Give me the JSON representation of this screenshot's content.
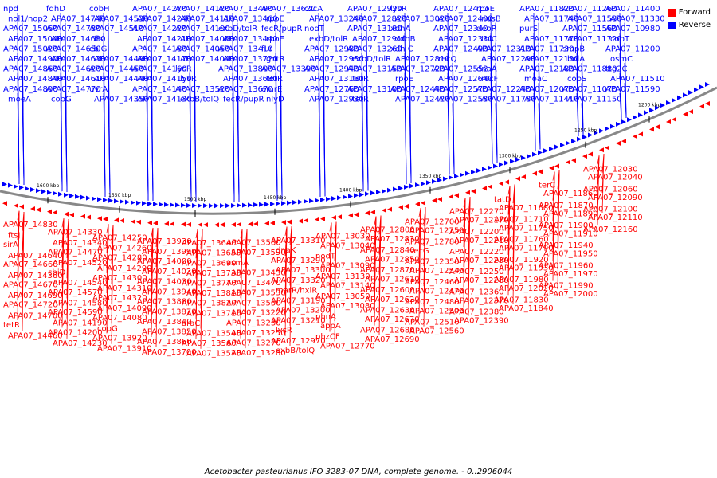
{
  "caption": "Acetobacter pasteurianus IFO 3283-07 DNA, complete genome. - 0..2906044",
  "legend": [
    {
      "label": "Forward",
      "color": "#ff0000"
    },
    {
      "label": "Reverse",
      "color": "#0000ff"
    }
  ],
  "colors": {
    "forward": "#ff0000",
    "reverse": "#0000ff",
    "backbone": "#888888"
  },
  "scale_ticks": [
    "1600 kbp",
    "1550 kbp",
    "1500 kbp",
    "1450 kbp",
    "1400 kbp",
    "1350 kbp",
    "1300 kbp",
    "1250 kbp",
    "1200 kbp"
  ],
  "reverse_labels": [
    "npd",
    "nol1/nop2",
    "APA07_15060",
    "APA07_15040",
    "APA07_15020",
    "APA07_14900",
    "APA07_14860",
    "APA07_14840",
    "APA07_14800",
    "moeA",
    "fdhD",
    "APA07_14740",
    "APA07_14730",
    "APA07_14680",
    "APA07_14650",
    "APA07_14630",
    "APA07_14620",
    "APA07_14610",
    "APA07_14770",
    "cobG",
    "cobH",
    "APA07_14530",
    "APA07_14510",
    "fis",
    "cbiG",
    "APA07_14490",
    "APA07_14450",
    "APA07_14440",
    "uvrA",
    "APA07_14350",
    "APA07_14270",
    "APA07_14240",
    "APA07_14220",
    "APA07_14210",
    "APA07_14180",
    "APA07_14170",
    "APA07_14160",
    "APA07_14150",
    "APA07_14140",
    "APA07_14130",
    "APA07_14120",
    "APA07_14110",
    "APA07_14100",
    "APA07_14060",
    "APA07_14050",
    "APA07_14040",
    "lysR",
    "lysR",
    "APA07_13520",
    "exbB/tolQ",
    "APA07_13490",
    "APA07_13460",
    "exbD/tolR",
    "APA07_13440",
    "APA07_13410",
    "APA07_13720",
    "APA07_13800",
    "APA07_13680",
    "APA07_13670",
    "fecR/pupR",
    "APA07_13620",
    "rpoE",
    "fecR/pupR",
    "rpoE",
    "fur",
    "gntR",
    "APA07_13390",
    "tetR",
    "emrE",
    "nlyD",
    "czcA",
    "APA07_13240",
    "nodT",
    "exbD/tolR",
    "APA07_12980",
    "APA07_12950",
    "APA07_12940",
    "APA07_13160",
    "APA07_12760",
    "APA07_12930",
    "APA07_12920",
    "APA07_12820",
    "APA07_13180",
    "APA07_12910",
    "APA07_13260",
    "exbD/tolR",
    "APA07_13150",
    "tetR",
    "APA07_13100",
    "tetR",
    "lysR",
    "APA07_13020",
    "xdhA",
    "xdhB",
    "xdh C",
    "APA07_12810",
    "APA07_12720",
    "rpoE",
    "APA07_12440",
    "APA07_12420",
    "APA07_12410",
    "APA07_12400",
    "APA07_12340",
    "APA07_12330",
    "APA07_12490",
    "recQ",
    "APA07_12552",
    "APA07_12640",
    "APA07_12570",
    "APA07_12530",
    "rpoE",
    "nusB",
    "deoR",
    "tolC",
    "APA07_12310",
    "APA07_12290",
    "dnaA",
    "recF",
    "APA07_12240",
    "APA07_11780",
    "APA07_11820",
    "APA07_11740",
    "purS",
    "APA07_11770",
    "APA07_11730",
    "APA07_12130",
    "APA07_12180",
    "moaC",
    "APA07_12070",
    "APA07_11410",
    "APA07_11260",
    "APA07_11580",
    "APA07_11560",
    "APA07_11720",
    "smpB",
    "bolA",
    "APA07_11880",
    "cobS",
    "APA07_11070",
    "APA07_11150",
    "APA07_11400",
    "APA07_11330",
    "APA07_10980",
    "cobT",
    "APA07_11200",
    "osmC",
    "ttg2C",
    "APA07_11510",
    "APA07_11590"
  ],
  "forward_labels": [
    "APA07_14830",
    "ftsJ",
    "sirA",
    "APA07_14640",
    "APA07_14660",
    "APA07_14360",
    "APA07_14670",
    "APA07_14690",
    "APA07_14720",
    "APA07_14700",
    "tetR",
    "APA07_14460",
    "APA07_14330",
    "APA07_14340",
    "APA07_14470",
    "APA07_14520",
    "cbiD",
    "APA07_14540",
    "APA07_14570",
    "APA07_14580",
    "APA07_14590",
    "APA07_14190",
    "APA07_14200",
    "APA07_14230",
    "APA07_14250",
    "APA07_14260",
    "APA07_14280",
    "APA07_14290",
    "APA07_14300",
    "APA07_14310",
    "APA07_14320",
    "APA07_14090",
    "APA07_14080",
    "copG",
    "APA07_13920",
    "APA07_13910",
    "APA07_13930",
    "APA07_13990",
    "APA07_14000",
    "APA07_14020",
    "APA07_14030",
    "APA07_13940",
    "APA07_13880",
    "APA07_13870",
    "APA07_13840",
    "APA07_13850",
    "APA07_13860",
    "APA07_13700",
    "APA07_13640",
    "APA07_13650",
    "APA07_13690",
    "APA07_13730",
    "APA07_13770",
    "APA07_13810",
    "APA07_13820",
    "APA07_13710",
    "araC",
    "APA07_13540",
    "APA07_13560",
    "APA07_13570",
    "APA07_13580",
    "APA07_13590",
    "asmA",
    "APA07_13430",
    "APA07_13470",
    "APA07_13530",
    "APA07_13550",
    "APA07_13220",
    "APA07_13230",
    "APA07_13250",
    "APA07_13270",
    "APA07_13280",
    "APA07_13310",
    "dnaK",
    "APA07_13290",
    "APA07_13300",
    "APA07_13320",
    "marR/hxlR",
    "APA07_13190",
    "APA07_13200",
    "APA07_13210",
    "lysR",
    "APA07_12970",
    "exbB/tolQ",
    "APA07_13030",
    "APA07_13040",
    "nodT",
    "APA07_13090",
    "APA07_13130",
    "APA07_13140",
    "APA07_13050",
    "APA07_13080",
    "phnA",
    "appA",
    "phzCF",
    "APA07_12770",
    "APA07_12800",
    "APA07_12830",
    "APA07_12840",
    "APA07_12850",
    "APA07_12870",
    "APA07_12610",
    "APA07_12600",
    "APA07_12620",
    "APA07_12630",
    "APA07_12670",
    "APA07_12680",
    "APA07_12690",
    "APA07_12700",
    "APA07_12750",
    "APA07_12780",
    "secG",
    "APA07_12350",
    "APA07_12540",
    "APA07_12460",
    "APA07_12470",
    "APA07_12480",
    "APA07_12500",
    "APA07_12510",
    "APA07_12560",
    "APA07_12270",
    "APA07_12170",
    "APA07_12200",
    "APA07_12210",
    "APA07_12220",
    "APA07_12230",
    "APA07_12250",
    "APA07_12280",
    "APA07_12360",
    "APA07_12370",
    "APA07_12380",
    "APA07_12390",
    "tatD",
    "APA07_11680",
    "APA07_11710",
    "APA07_11750",
    "APA07_11760",
    "APA07_11790",
    "APA07_11920",
    "APA07_11930",
    "APA07_11980",
    "APA07_12020",
    "APA07_11830",
    "APA07_11840",
    "terC",
    "APA07_11860",
    "APA07_11870",
    "APA07_11890",
    "APA07_11900",
    "APA07_11910",
    "APA07_11940",
    "APA07_11950",
    "APA07_11960",
    "APA07_11970",
    "APA07_11990",
    "APA07_12000",
    "APA07_12030",
    "APA07_12040",
    "APA07_12060",
    "APA07_12090",
    "APA07_12100",
    "APA07_12110",
    "APA07_12160"
  ]
}
